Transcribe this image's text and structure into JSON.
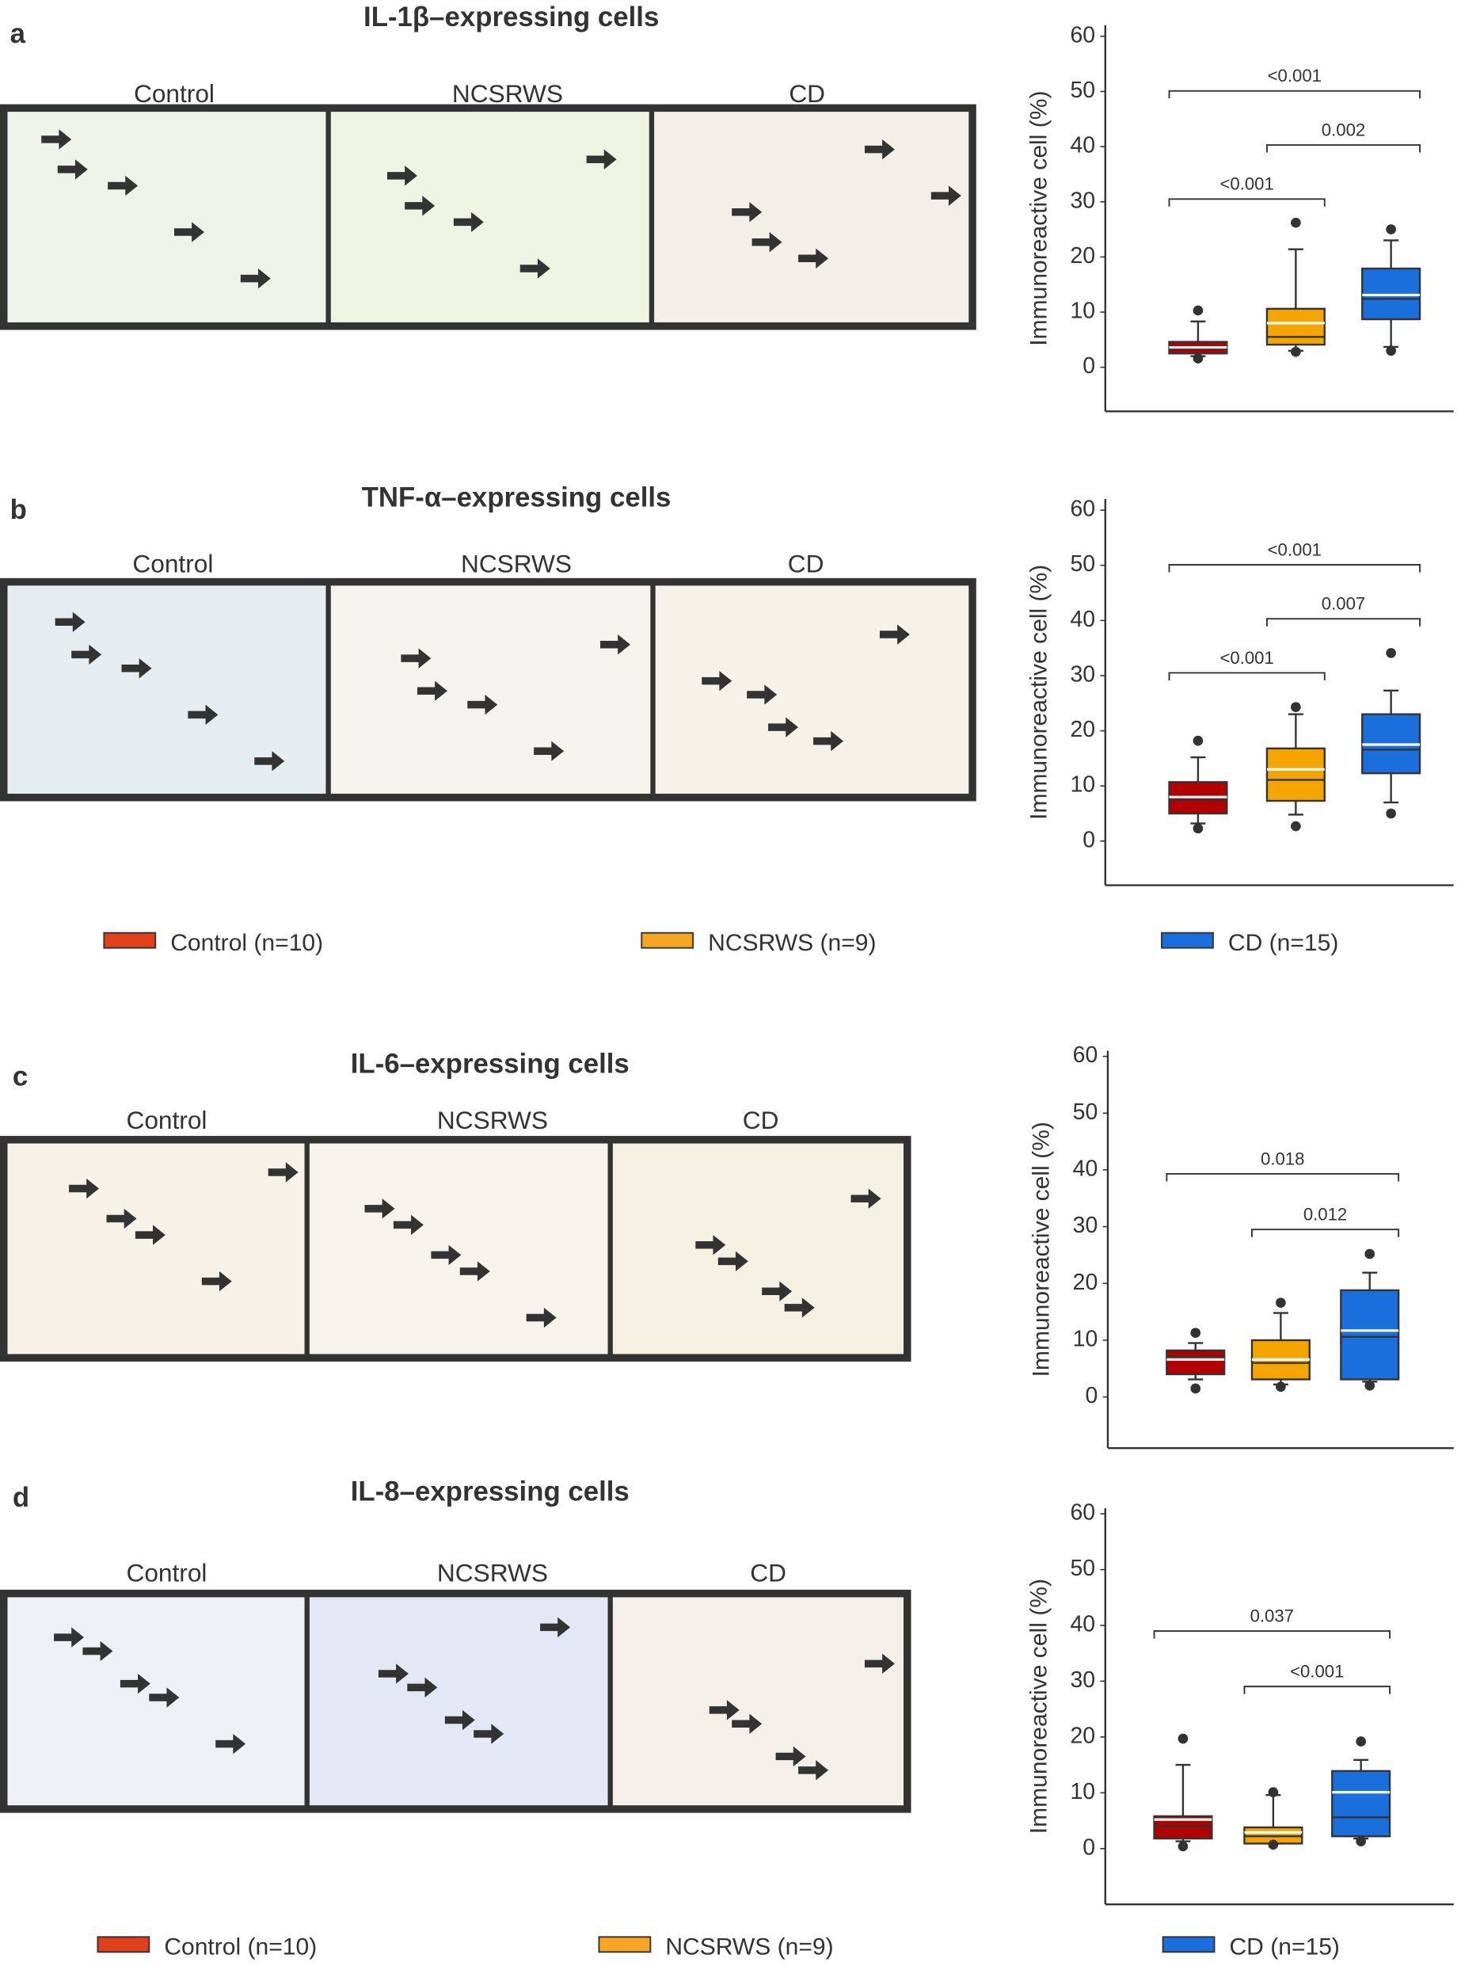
{
  "panels": [
    {
      "letter": "a",
      "title": "IL-1β–expressing cells",
      "images": [
        "Control",
        "NCSRWS",
        "CD"
      ]
    },
    {
      "letter": "b",
      "title": "TNF-α–expressing cells",
      "images": [
        "Control",
        "NCSRWS",
        "CD"
      ]
    },
    {
      "letter": "c",
      "title": "IL-6–expressing cells",
      "images": [
        "Control",
        "NCSRWS",
        "CD"
      ]
    },
    {
      "letter": "d",
      "title": "IL-8–expressing cells",
      "images": [
        "Control",
        "NCSRWS",
        "CD"
      ]
    }
  ],
  "chart_data": [
    {
      "type": "box",
      "ylabel": "Immunoreactive cell (%)",
      "ylim": [
        -8,
        62
      ],
      "yticks": [
        0,
        10,
        20,
        30,
        40,
        50,
        60
      ],
      "series": [
        {
          "color": "#b30000",
          "whislo": 2,
          "q1": 2.5,
          "med": 3.4,
          "mean": 3.6,
          "q3": 4.6,
          "whishi": 8.3,
          "fliers": [
            10.3,
            1.6
          ]
        },
        {
          "color": "#f5a500",
          "whislo": 3,
          "q1": 4.1,
          "med": 5.5,
          "mean": 8.0,
          "q3": 10.6,
          "whishi": 21.4,
          "fliers": [
            26.2,
            2.8
          ]
        },
        {
          "color": "#1a6fdc",
          "whislo": 3.7,
          "q1": 8.7,
          "med": 12.4,
          "mean": 13.1,
          "q3": 17.9,
          "whishi": 23,
          "fliers": [
            25,
            3
          ]
        }
      ],
      "comparisons": [
        {
          "pair": [
            0,
            2
          ],
          "label": "<0.001"
        },
        {
          "pair": [
            1,
            2
          ],
          "label": "0.002"
        },
        {
          "pair": [
            0,
            1
          ],
          "label": "<0.001"
        }
      ]
    },
    {
      "type": "box",
      "ylabel": "Immunoreactive cell (%)",
      "ylim": [
        -8,
        62
      ],
      "yticks": [
        0,
        10,
        20,
        30,
        40,
        50,
        60
      ],
      "series": [
        {
          "name": "Control (n=10)",
          "color": "#b30000",
          "swatch": "#e2401a",
          "whislo": 3.2,
          "q1": 5.0,
          "med": 7.5,
          "mean": 8.0,
          "q3": 10.7,
          "whishi": 15.2,
          "fliers": [
            18.2,
            2.3
          ]
        },
        {
          "name": "NCSRWS (n=9)",
          "color": "#f5a500",
          "swatch": "#f5a623",
          "whislo": 4.8,
          "q1": 7.3,
          "med": 11.1,
          "mean": 13.0,
          "q3": 16.8,
          "whishi": 23,
          "fliers": [
            24.3,
            2.7
          ]
        },
        {
          "name": "CD (n=15)",
          "color": "#1a6fdc",
          "swatch": "#1a6fdc",
          "whislo": 7,
          "q1": 12.3,
          "med": 16.6,
          "mean": 17.5,
          "q3": 23,
          "whishi": 27.3,
          "fliers": [
            34.1,
            5
          ]
        }
      ],
      "comparisons": [
        {
          "pair": [
            0,
            2
          ],
          "label": "<0.001"
        },
        {
          "pair": [
            1,
            2
          ],
          "label": "0.007"
        },
        {
          "pair": [
            0,
            1
          ],
          "label": "<0.001"
        }
      ]
    },
    {
      "type": "box",
      "ylabel": "Immunoreactive cell (%)",
      "ylim": [
        -9,
        61
      ],
      "yticks": [
        0,
        10,
        20,
        30,
        40,
        50,
        60
      ],
      "series": [
        {
          "color": "#b30000",
          "whislo": 3.1,
          "q1": 4.0,
          "med": 7.1,
          "mean": 6.6,
          "q3": 8.2,
          "whishi": 9.5,
          "fliers": [
            11.3,
            1.5
          ]
        },
        {
          "color": "#f5a500",
          "whislo": 2.2,
          "q1": 3.1,
          "med": 6.0,
          "mean": 6.6,
          "q3": 10,
          "whishi": 14.8,
          "fliers": [
            16.6,
            1.8
          ]
        },
        {
          "color": "#1a6fdc",
          "whislo": 2.7,
          "q1": 3.1,
          "med": 10.6,
          "mean": 11.7,
          "q3": 18.8,
          "whishi": 21.9,
          "fliers": [
            25.2,
            2
          ]
        }
      ],
      "comparisons": [
        {
          "pair": [
            0,
            2
          ],
          "label": "0.018"
        },
        {
          "pair": [
            1,
            2
          ],
          "label": "0.012"
        }
      ]
    },
    {
      "type": "box",
      "ylabel": "Immunoreactive cell (%)",
      "ylim": [
        -10,
        61
      ],
      "yticks": [
        0,
        10,
        20,
        30,
        40,
        50,
        60
      ],
      "series": [
        {
          "name": "Control (n=10)",
          "color": "#b30000",
          "swatch": "#e2401a",
          "whislo": 1.3,
          "q1": 1.8,
          "med": 4.0,
          "mean": 5.2,
          "q3": 5.8,
          "whishi": 15,
          "fliers": [
            19.7,
            0.4
          ]
        },
        {
          "name": "NCSRWS (n=9)",
          "color": "#f5a500",
          "swatch": "#f5a623",
          "whislo": 0.9,
          "q1": 0.9,
          "med": 2.2,
          "mean": 2.9,
          "q3": 3.8,
          "whishi": 9.6,
          "fliers": [
            10.1,
            0.7
          ]
        },
        {
          "name": "CD (n=15)",
          "color": "#1a6fdc",
          "swatch": "#1a6fdc",
          "whislo": 1.8,
          "q1": 2.2,
          "med": 5.6,
          "mean": 10.1,
          "q3": 13.9,
          "whishi": 15.9,
          "fliers": [
            19.2,
            1.3
          ]
        }
      ],
      "comparisons": [
        {
          "pair": [
            0,
            2
          ],
          "label": "0.037"
        },
        {
          "pair": [
            1,
            2
          ],
          "label": "<0.001"
        }
      ]
    }
  ]
}
